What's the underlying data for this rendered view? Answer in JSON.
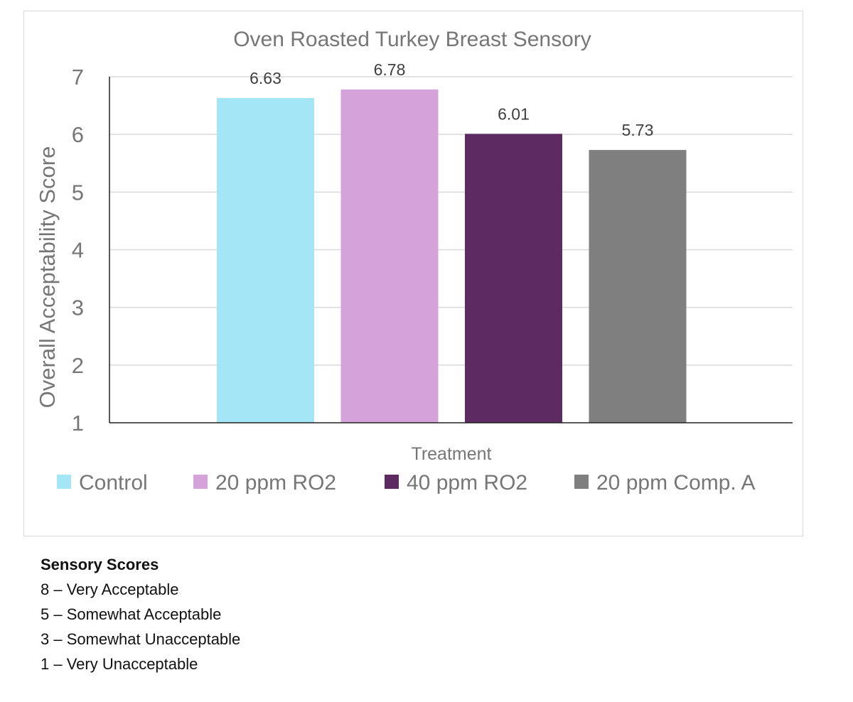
{
  "chart_data": {
    "type": "bar",
    "title": "Oven Roasted Turkey Breast Sensory",
    "xlabel": "Treatment",
    "ylabel": "Overall Acceptability Score",
    "ylim": [
      1,
      7
    ],
    "yticks": [
      "1",
      "2",
      "3",
      "4",
      "5",
      "6",
      "7"
    ],
    "grid": true,
    "legend_position": "bottom",
    "categories": [
      "Control",
      "20 ppm RO2",
      "40 ppm RO2",
      "20 ppm Comp. A"
    ],
    "values": [
      6.63,
      6.78,
      6.01,
      5.73
    ],
    "labels": [
      "6.63",
      "6.78",
      "6.01",
      "5.73"
    ],
    "colors": [
      "#a4e6f6",
      "#d6a2da",
      "#5e2a62",
      "#7f7f7f"
    ]
  },
  "notes": {
    "heading": "Sensory Scores",
    "lines": [
      "8 – Very Acceptable",
      "5 – Somewhat Acceptable",
      "3 – Somewhat Unacceptable",
      "1 – Very Unacceptable"
    ]
  }
}
